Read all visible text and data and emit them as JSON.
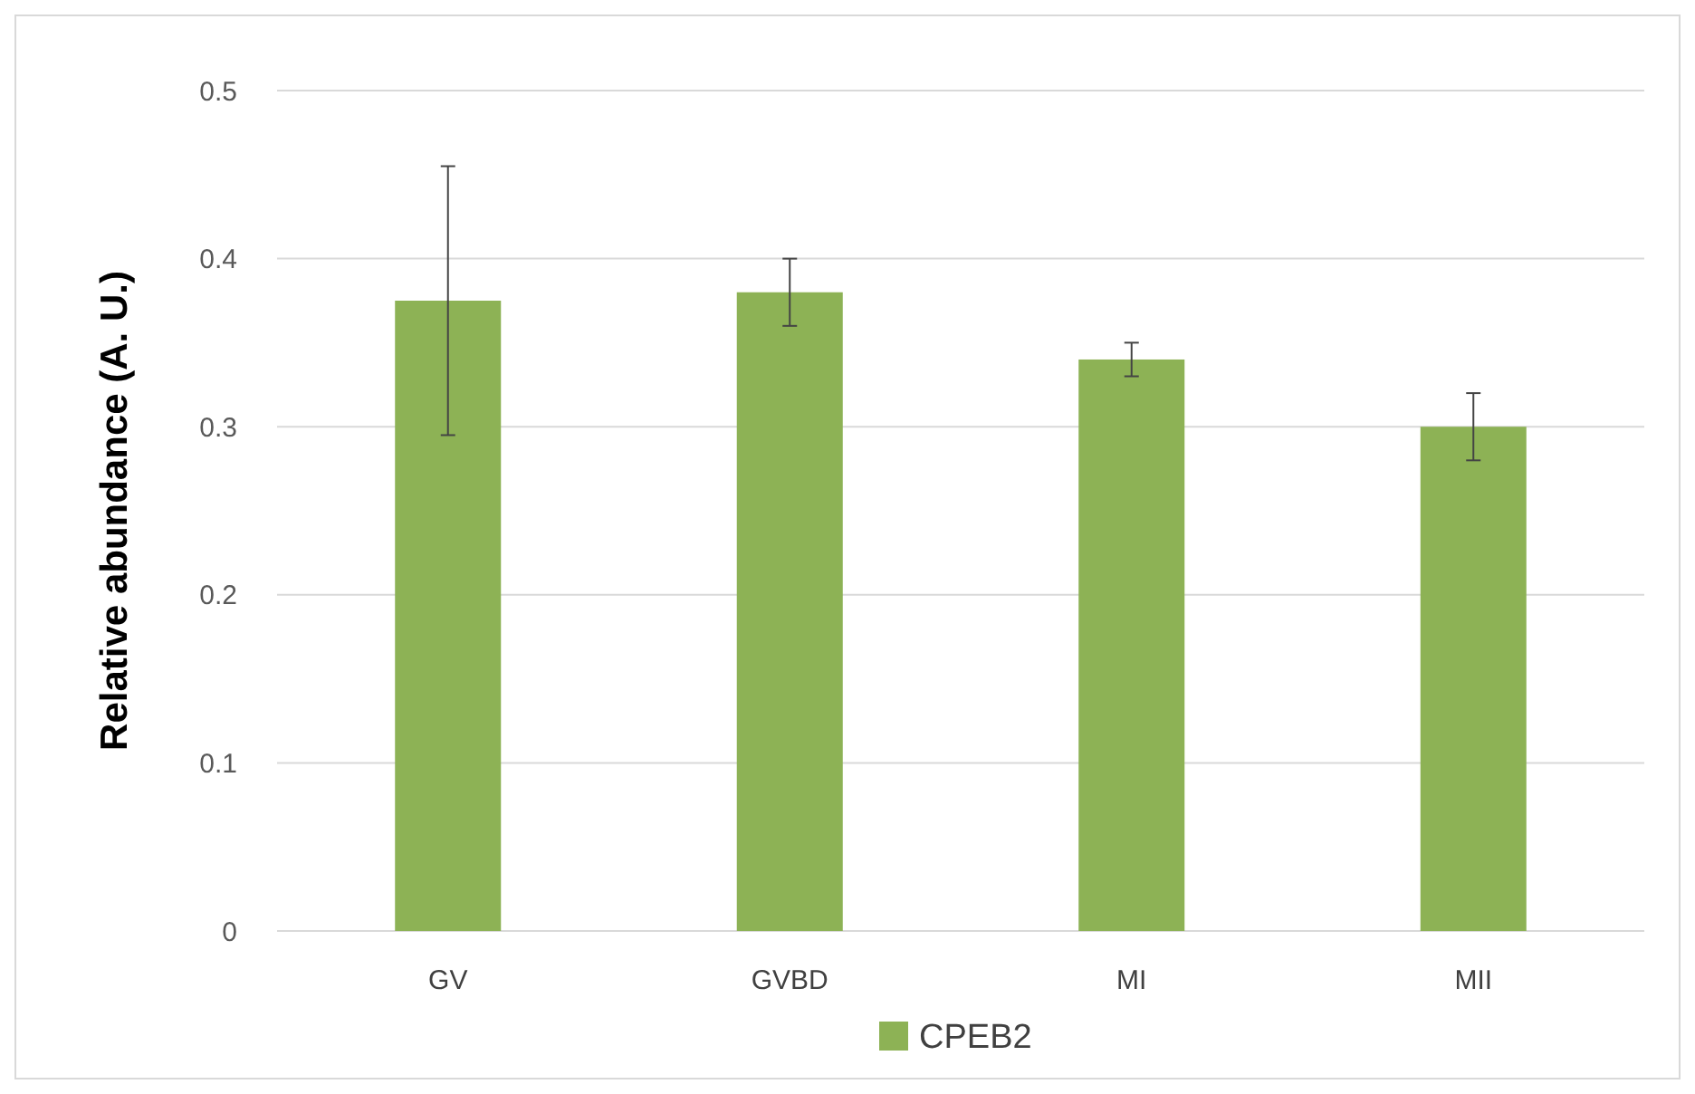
{
  "chart_data": {
    "type": "bar",
    "ylabel": "Relative abundance  (A. U.)",
    "categories": [
      "GV",
      "GVBD",
      "MI",
      "MII"
    ],
    "series": [
      {
        "name": "CPEB2",
        "color": "#8db255",
        "values": [
          0.375,
          0.38,
          0.34,
          0.3
        ],
        "errors": [
          [
            0.295,
            0.455
          ],
          [
            0.36,
            0.4
          ],
          [
            0.33,
            0.35
          ],
          [
            0.28,
            0.32
          ]
        ]
      }
    ],
    "ylim": [
      0,
      0.5
    ],
    "yticks": [
      0,
      0.1,
      0.2,
      0.3,
      0.4,
      0.5
    ],
    "grid": "y",
    "legend": "bottom"
  }
}
